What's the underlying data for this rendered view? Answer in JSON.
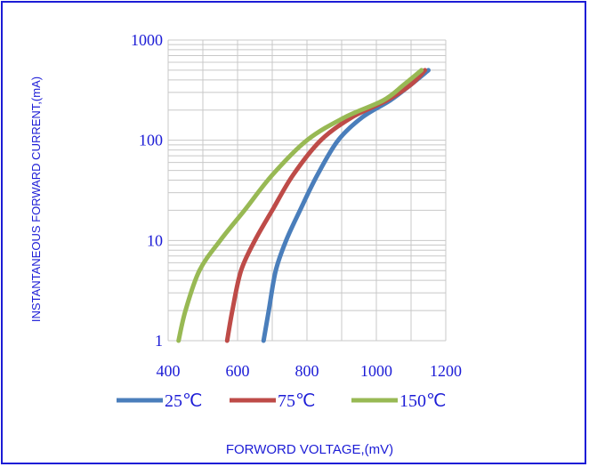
{
  "chart_data": {
    "type": "line",
    "title": "",
    "xlabel": "FORWORD VOLTAGE,(mV)",
    "ylabel": "INSTANTANEOUS FORWARD CURRENT,(mA)",
    "xlim": [
      400,
      1200
    ],
    "ylim": [
      1,
      1000
    ],
    "y_scale": "log",
    "x_ticks": [
      400,
      600,
      800,
      1000,
      1200
    ],
    "x_tick_labels": [
      "400",
      "600",
      "800",
      "1000",
      "1200"
    ],
    "y_ticks": [
      1,
      10,
      100,
      1000
    ],
    "y_tick_labels": [
      "1",
      "10",
      "100",
      "1000"
    ],
    "grid": true,
    "legend_position": "bottom",
    "colors": {
      "text": "#1c1cd6",
      "grid": "#c8c8c8"
    },
    "series": [
      {
        "name": "25℃",
        "color": "#4a7ebb",
        "x": [
          675,
          690,
          710,
          740,
          780,
          830,
          890,
          960,
          1040,
          1100,
          1150
        ],
        "y": [
          1,
          2,
          5,
          10,
          20,
          45,
          100,
          170,
          250,
          360,
          500
        ]
      },
      {
        "name": "75℃",
        "color": "#be4b48",
        "x": [
          570,
          585,
          610,
          650,
          700,
          760,
          840,
          930,
          1030,
          1100,
          1140
        ],
        "y": [
          1,
          2,
          5,
          10,
          20,
          45,
          100,
          170,
          250,
          360,
          500
        ]
      },
      {
        "name": "150℃",
        "color": "#98b954",
        "x": [
          430,
          450,
          490,
          550,
          620,
          700,
          800,
          910,
          1020,
          1080,
          1130
        ],
        "y": [
          1,
          2,
          5,
          10,
          20,
          45,
          100,
          170,
          250,
          360,
          500
        ]
      }
    ]
  }
}
